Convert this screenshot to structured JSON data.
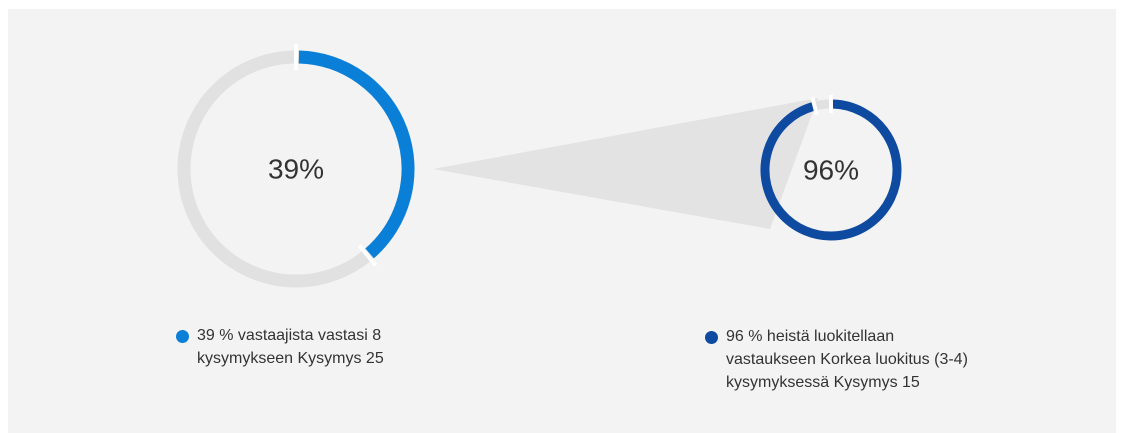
{
  "colors": {
    "primary": "#0a7fd8",
    "secondary": "#0f4aa1",
    "track": "#e1e1e1",
    "connector": "#e3e3e3"
  },
  "chart_data": {
    "type": "pie",
    "charts": [
      {
        "value": 39,
        "center_label": "39%",
        "legend": "39 % vastaajista vastasi 8 kysymykseen Kysymys 25",
        "color": "#0a7fd8"
      },
      {
        "value": 96,
        "center_label": "96%",
        "legend": "96 % heistä luokitellaan vastaukseen Korkea luokitus (3-4) kysymyksessä Kysymys 15",
        "color": "#0f4aa1"
      }
    ]
  }
}
